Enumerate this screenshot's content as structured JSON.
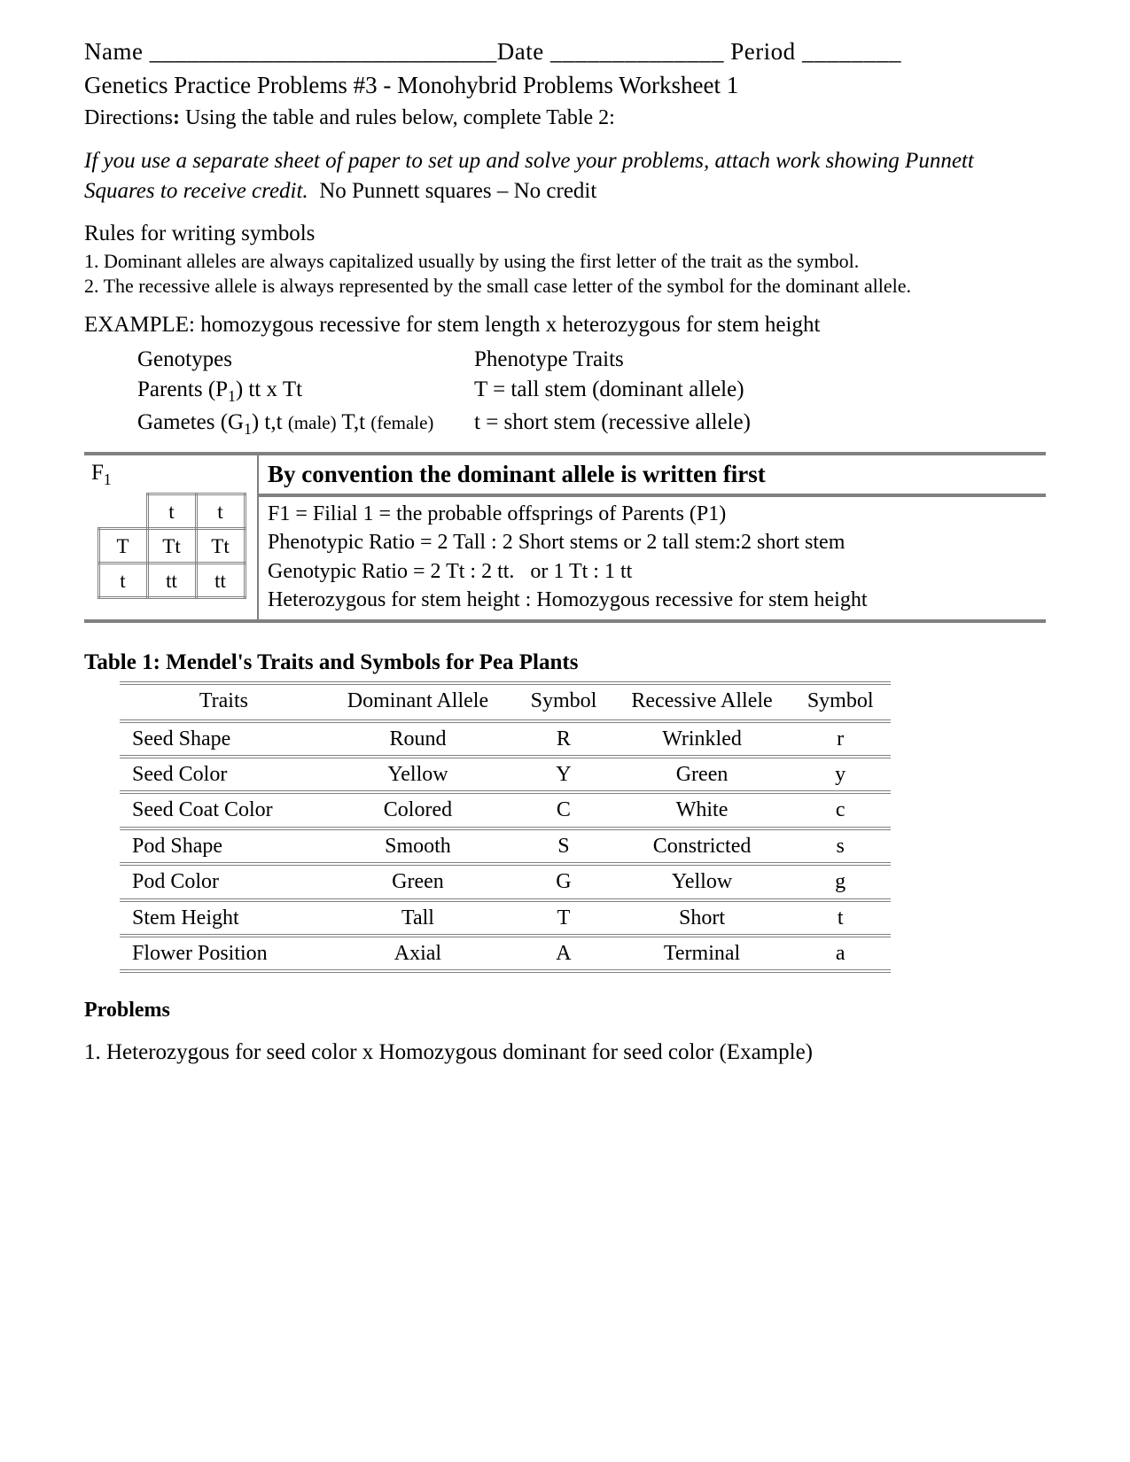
{
  "header": {
    "nameLabel": "Name",
    "nameBlank": "____________________________",
    "dateLabel": "Date",
    "dateBlank": "______________",
    "periodLabel": "Period",
    "periodBlank": "________"
  },
  "title": "Genetics Practice Problems #3 - Monohybrid Problems Worksheet 1",
  "directionsLabel": "Directions",
  "directionsColon": ":",
  "directionsText": "Using the table and rules below, complete Table 2:",
  "noteItalic": "If you use a separate sheet of paper to set up and solve your problems, attach work showing Punnett Squares to receive credit.",
  "notePlain": "No Punnett squares – No credit",
  "rulesHeading": "Rules for writing symbols",
  "rule1": "1. Dominant alleles are always capitalized usually by using the first letter of the trait as the symbol.",
  "rule2": "2. The recessive allele is always represented by the small case letter of the symbol for the dominant allele.",
  "exampleHeading": "EXAMPLE: homozygous recessive for stem length x heterozygous for stem height",
  "example": {
    "genotypesLabel": "Genotypes",
    "phenotypeLabel": "Phenotype Traits",
    "parentsLabel": "Parents (P",
    "parentsSub": "1",
    "parentsVal": ") tt x Tt",
    "tallDef": "T = tall stem (dominant allele)",
    "gametesLabel": "Gametes (G",
    "gametesSub": "1",
    "gametesVal": ") t,t",
    "maleTag": "(male)",
    "femaleGametes": "T,t",
    "femaleTag": "(female)",
    "shortDef": "t = short stem (recessive allele)"
  },
  "f1": {
    "label": "F",
    "labelSub": "1",
    "conventionHeading": "By convention the dominant allele is written first",
    "line1": "F1 = Filial 1 = the probable offsprings of Parents (P1)",
    "line2": "Phenotypic Ratio = 2 Tall : 2 Short stems or 2 tall stem:2 short stem",
    "line3": "Genotypic Ratio = 2 Tt : 2 tt.   or 1 Tt : 1 tt",
    "line4": "Heterozygous for stem height : Homozygous recessive for stem height",
    "punnett": {
      "cols": [
        "t",
        "t"
      ],
      "rows": [
        {
          "label": "T",
          "cells": [
            "Tt",
            "Tt"
          ]
        },
        {
          "label": "t",
          "cells": [
            "tt",
            "tt"
          ]
        }
      ]
    }
  },
  "table1Title": "Table 1: Mendel's Traits and Symbols for Pea Plants",
  "table1": {
    "headers": [
      "Traits",
      "Dominant Allele",
      "Symbol",
      "Recessive Allele",
      "Symbol"
    ],
    "rows": [
      [
        "Seed Shape",
        "Round",
        "R",
        "Wrinkled",
        "r"
      ],
      [
        "Seed Color",
        "Yellow",
        "Y",
        "Green",
        "y"
      ],
      [
        "Seed Coat Color",
        "Colored",
        "C",
        "White",
        "c"
      ],
      [
        "Pod Shape",
        "Smooth",
        "S",
        "Constricted",
        "s"
      ],
      [
        "Pod Color",
        "Green",
        "G",
        "Yellow",
        "g"
      ],
      [
        "Stem Height",
        "Tall",
        "T",
        "Short",
        "t"
      ],
      [
        "Flower Position",
        "Axial",
        "A",
        "Terminal",
        "a"
      ]
    ]
  },
  "problemsHeading": "Problems",
  "problem1": "1. Heterozygous for seed color x Homozygous dominant for seed color (Example)"
}
